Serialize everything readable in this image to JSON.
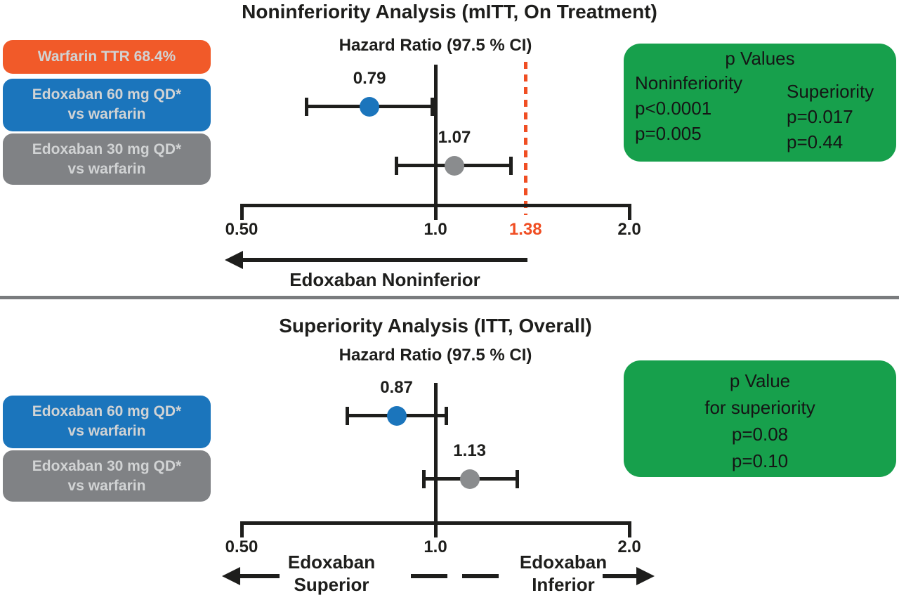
{
  "figure": {
    "divider_color": "#7A7C7E",
    "ink_color": "#1E1E1C",
    "chip_text_color": "#D1D3D4"
  },
  "chart_data": [
    {
      "type": "forest",
      "panel": "top",
      "title": "Noninferiority Analysis (mITT, On Treatment)",
      "subtitle": "Hazard Ratio (97.5 % CI)",
      "x_axis": {
        "scale": "log",
        "xlim": [
          0.5,
          2.0
        ],
        "ticks": [
          {
            "value": 0.5,
            "label": "0.50"
          },
          {
            "value": 1.0,
            "label": "1.0"
          },
          {
            "value": 2.0,
            "label": "2.0"
          }
        ],
        "reference_value": 1.0,
        "noninferiority_margin": {
          "value": 1.38,
          "label": "1.38",
          "color": "#F04E23",
          "style": "dashed"
        }
      },
      "legend": [
        {
          "lines": [
            "Warfarin TTR 68.4%"
          ],
          "color": "#F15A29"
        },
        {
          "lines": [
            "Edoxaban 60 mg QD*",
            "vs warfarin"
          ],
          "color": "#1B75BC"
        },
        {
          "lines": [
            "Edoxaban 30 mg QD*",
            "vs warfarin"
          ],
          "color": "#808285"
        }
      ],
      "rows": [
        {
          "group": "Edoxaban 60 mg QD* vs warfarin",
          "hr": 0.79,
          "hr_label": "0.79",
          "ci_low": 0.63,
          "ci_high": 0.99,
          "color": "#1B75BC"
        },
        {
          "group": "Edoxaban 30 mg QD* vs warfarin",
          "hr": 1.07,
          "hr_label": "1.07",
          "ci_low": 0.87,
          "ci_high": 1.31,
          "color": "#8A8C8E"
        }
      ],
      "direction_arrow": {
        "text": "Edoxaban Noninferior",
        "points": "left",
        "from": 1.38,
        "to": 0.5
      },
      "p_value_box": {
        "color": "#17A04C",
        "title": "p Values",
        "columns": [
          {
            "header": "Noninferiority",
            "values": [
              "p<0.0001",
              "p=0.005"
            ]
          },
          {
            "header": "Superiority",
            "values": [
              "p=0.017",
              "p=0.44"
            ]
          }
        ]
      }
    },
    {
      "type": "forest",
      "panel": "bottom",
      "title": "Superiority Analysis (ITT, Overall)",
      "subtitle": "Hazard Ratio (97.5 % CI)",
      "x_axis": {
        "scale": "log",
        "xlim": [
          0.5,
          2.0
        ],
        "ticks": [
          {
            "value": 0.5,
            "label": "0.50"
          },
          {
            "value": 1.0,
            "label": "1.0"
          },
          {
            "value": 2.0,
            "label": "2.0"
          }
        ],
        "reference_value": 1.0
      },
      "legend": [
        {
          "lines": [
            "Edoxaban 60 mg QD*",
            "vs warfarin"
          ],
          "color": "#1B75BC"
        },
        {
          "lines": [
            "Edoxaban 30 mg QD*",
            "vs warfarin"
          ],
          "color": "#808285"
        }
      ],
      "rows": [
        {
          "group": "Edoxaban 60 mg QD* vs warfarin",
          "hr": 0.87,
          "hr_label": "0.87",
          "ci_low": 0.73,
          "ci_high": 1.04,
          "color": "#1B75BC"
        },
        {
          "group": "Edoxaban 30 mg QD* vs warfarin",
          "hr": 1.13,
          "hr_label": "1.13",
          "ci_low": 0.96,
          "ci_high": 1.34,
          "color": "#8A8C8E"
        }
      ],
      "direction_arrows": [
        {
          "text_lines": [
            "Edoxaban",
            "Superior"
          ],
          "points": "left"
        },
        {
          "text_lines": [
            "Edoxaban",
            "Inferior"
          ],
          "points": "right"
        }
      ],
      "p_value_box": {
        "color": "#17A04C",
        "lines": [
          "p Value",
          "for superiority",
          "p=0.08",
          "p=0.10"
        ]
      }
    }
  ]
}
